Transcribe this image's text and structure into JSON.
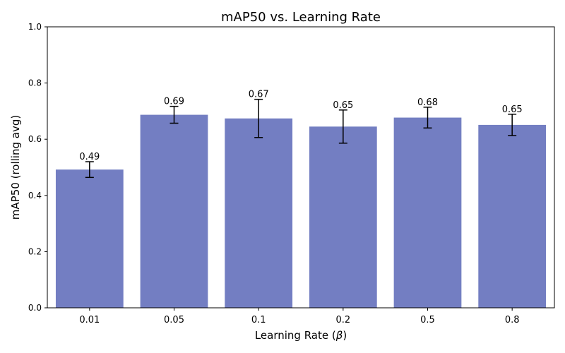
{
  "chart_data": {
    "type": "bar",
    "title": "mAP50 vs. Learning Rate",
    "xlabel_prefix": "Learning Rate (",
    "xlabel_symbol": "β",
    "xlabel_suffix": ")",
    "ylabel": "mAP50 (rolling avg)",
    "categories": [
      "0.01",
      "0.05",
      "0.1",
      "0.2",
      "0.5",
      "0.8"
    ],
    "values": [
      0.492,
      0.687,
      0.674,
      0.645,
      0.677,
      0.651
    ],
    "errors": [
      0.028,
      0.03,
      0.068,
      0.059,
      0.037,
      0.038
    ],
    "data_labels": [
      "0.49",
      "0.69",
      "0.67",
      "0.65",
      "0.68",
      "0.65"
    ],
    "ylim": [
      0,
      1.0
    ],
    "yticks": [
      "0.0",
      "0.2",
      "0.4",
      "0.6",
      "0.8",
      "1.0"
    ],
    "grid": false,
    "bar_color": "#737ec2"
  }
}
